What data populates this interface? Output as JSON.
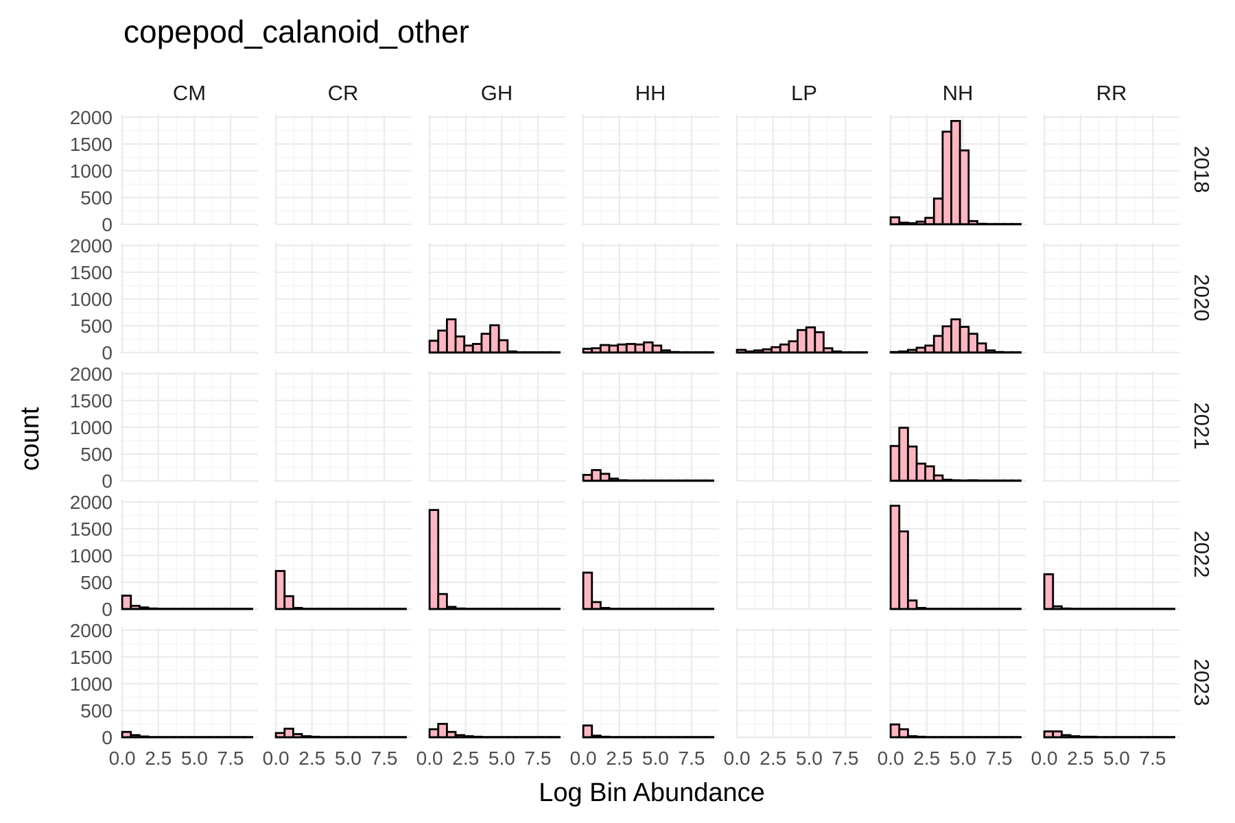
{
  "chart_data": {
    "type": "bar",
    "title": "copepod_calanoid_other",
    "xlabel": "Log Bin Abundance",
    "ylabel": "count",
    "columns": [
      "CM",
      "CR",
      "GH",
      "HH",
      "LP",
      "NH",
      "RR"
    ],
    "rows": [
      "2018",
      "2020",
      "2021",
      "2022",
      "2023"
    ],
    "xlim": [
      -0.1,
      9.4
    ],
    "x_ticks": [
      0.0,
      2.5,
      5.0,
      7.5
    ],
    "x_tick_labels": [
      "0.0",
      "2.5",
      "5.0",
      "7.5"
    ],
    "ylim": [
      0,
      2050
    ],
    "y_ticks": [
      0,
      500,
      1000,
      1500,
      2000
    ],
    "y_tick_labels": [
      "0",
      "500",
      "1000",
      "1500",
      "2000"
    ],
    "bin_start": 0.0,
    "bin_width": 0.6,
    "grid": true,
    "bar_fill": "#ffb6c1",
    "bar_edge": "#000000",
    "panels": [
      {
        "column": "NH",
        "row": "2018",
        "counts": [
          130,
          30,
          20,
          50,
          120,
          480,
          1730,
          1930,
          1380,
          60,
          10,
          5,
          5,
          5,
          5
        ]
      },
      {
        "column": "GH",
        "row": "2020",
        "counts": [
          220,
          410,
          620,
          300,
          130,
          160,
          350,
          510,
          230,
          20,
          5,
          5,
          5,
          5,
          5
        ]
      },
      {
        "column": "HH",
        "row": "2020",
        "counts": [
          70,
          80,
          140,
          130,
          150,
          160,
          150,
          190,
          130,
          40,
          10,
          5,
          5,
          5,
          5
        ]
      },
      {
        "column": "LP",
        "row": "2020",
        "counts": [
          50,
          20,
          40,
          60,
          100,
          150,
          210,
          420,
          470,
          380,
          80,
          20,
          5,
          5,
          5
        ]
      },
      {
        "column": "NH",
        "row": "2020",
        "counts": [
          10,
          20,
          50,
          90,
          130,
          310,
          490,
          620,
          480,
          350,
          170,
          40,
          10,
          5,
          5
        ]
      },
      {
        "column": "HH",
        "row": "2021",
        "counts": [
          110,
          200,
          130,
          40,
          10,
          5,
          5,
          5,
          5,
          5,
          5,
          5,
          5,
          5,
          5
        ]
      },
      {
        "column": "NH",
        "row": "2021",
        "counts": [
          650,
          990,
          640,
          320,
          270,
          100,
          20,
          10,
          5,
          10,
          5,
          5,
          5,
          5,
          5
        ]
      },
      {
        "column": "CM",
        "row": "2022",
        "counts": [
          250,
          60,
          30,
          10,
          5,
          5,
          5,
          5,
          5,
          5,
          5,
          5,
          5,
          5,
          5
        ]
      },
      {
        "column": "CR",
        "row": "2022",
        "counts": [
          710,
          240,
          20,
          5,
          5,
          5,
          5,
          5,
          5,
          5,
          5,
          5,
          5,
          5,
          5
        ]
      },
      {
        "column": "GH",
        "row": "2022",
        "counts": [
          1850,
          280,
          40,
          10,
          5,
          5,
          5,
          5,
          5,
          5,
          5,
          5,
          5,
          5,
          5
        ]
      },
      {
        "column": "HH",
        "row": "2022",
        "counts": [
          680,
          130,
          20,
          5,
          5,
          5,
          5,
          5,
          5,
          5,
          5,
          5,
          5,
          5,
          5
        ]
      },
      {
        "column": "NH",
        "row": "2022",
        "counts": [
          1930,
          1450,
          160,
          20,
          5,
          5,
          5,
          5,
          5,
          5,
          5,
          5,
          5,
          5,
          5
        ]
      },
      {
        "column": "RR",
        "row": "2022",
        "counts": [
          650,
          50,
          10,
          5,
          5,
          5,
          5,
          5,
          5,
          5,
          5,
          5,
          5,
          5,
          5
        ]
      },
      {
        "column": "CM",
        "row": "2023",
        "counts": [
          100,
          40,
          15,
          5,
          5,
          5,
          5,
          5,
          5,
          5,
          5,
          5,
          5,
          5,
          5
        ]
      },
      {
        "column": "CR",
        "row": "2023",
        "counts": [
          80,
          160,
          60,
          20,
          10,
          5,
          5,
          5,
          5,
          5,
          5,
          5,
          5,
          5,
          5
        ]
      },
      {
        "column": "GH",
        "row": "2023",
        "counts": [
          150,
          250,
          100,
          40,
          20,
          10,
          5,
          5,
          5,
          5,
          5,
          5,
          5,
          5,
          5
        ]
      },
      {
        "column": "HH",
        "row": "2023",
        "counts": [
          220,
          30,
          10,
          5,
          5,
          5,
          5,
          5,
          5,
          5,
          5,
          5,
          5,
          5,
          5
        ]
      },
      {
        "column": "NH",
        "row": "2023",
        "counts": [
          240,
          150,
          20,
          10,
          5,
          5,
          5,
          5,
          5,
          5,
          5,
          5,
          5,
          5,
          5
        ]
      },
      {
        "column": "RR",
        "row": "2023",
        "counts": [
          110,
          110,
          40,
          20,
          10,
          10,
          5,
          5,
          5,
          5,
          5,
          5,
          5,
          5,
          5
        ]
      }
    ]
  }
}
